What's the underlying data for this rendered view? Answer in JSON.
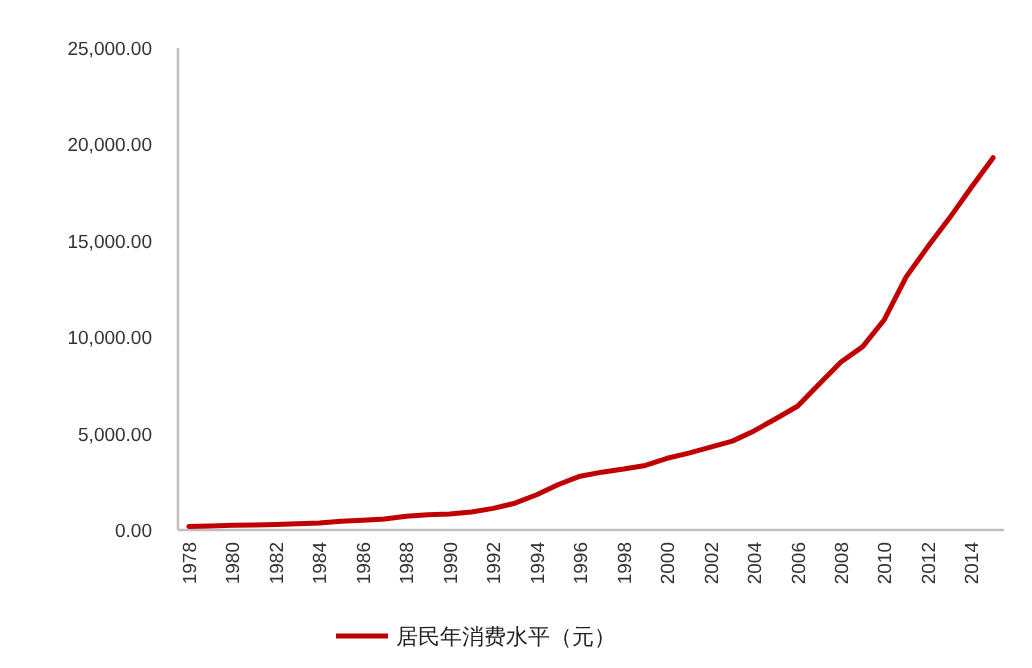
{
  "chart_data": {
    "type": "line",
    "categories": [
      "1978",
      null,
      "1980",
      null,
      "1982",
      null,
      "1984",
      null,
      "1986",
      null,
      "1988",
      null,
      "1990",
      null,
      "1992",
      null,
      "1994",
      null,
      "1996",
      null,
      "1998",
      null,
      "2000",
      null,
      "2002",
      null,
      "2004",
      null,
      "2006",
      null,
      "2008",
      null,
      "2010",
      null,
      "2012",
      null,
      "2014",
      null
    ],
    "series": [
      {
        "name": "居民年消费水平（元）",
        "color": "#c00000",
        "values": [
          180,
          210,
          240,
          260,
          290,
          320,
          360,
          450,
          500,
          570,
          710,
          790,
          830,
          930,
          1120,
          1390,
          1830,
          2360,
          2790,
          3000,
          3160,
          3350,
          3720,
          3990,
          4300,
          4610,
          5140,
          5770,
          6420,
          7570,
          8710,
          9510,
          10920,
          13130,
          14700,
          16190,
          17780,
          19310
        ]
      }
    ],
    "ylim": [
      0,
      25000
    ],
    "yticks": [
      {
        "value": 0,
        "label": "0.00"
      },
      {
        "value": 5000,
        "label": "5,000.00"
      },
      {
        "value": 10000,
        "label": "10,000.00"
      },
      {
        "value": 15000,
        "label": "15,000.00"
      },
      {
        "value": 20000,
        "label": "20,000.00"
      },
      {
        "value": 25000,
        "label": "25,000.00"
      }
    ],
    "grid": false,
    "legend": "bottom",
    "marker": "none",
    "line_style": "solid"
  }
}
